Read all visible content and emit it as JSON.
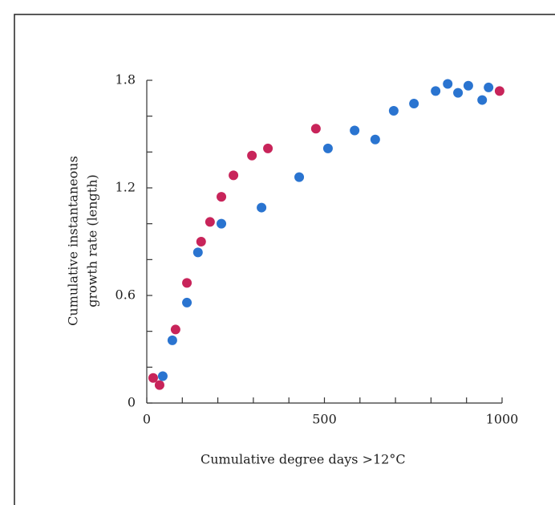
{
  "chart_data": {
    "type": "scatter",
    "ylabel": [
      "Cumulative instantaneous",
      "growth rate (length)"
    ],
    "xlabel": "Cumulative degree days >12°C",
    "xlim": [
      0,
      1000
    ],
    "ylim": [
      0,
      1.8
    ],
    "xticks": [
      0,
      500,
      1000
    ],
    "yticks": [
      0,
      0.6,
      1.2,
      1.8
    ],
    "x_minor_ticks": [
      100,
      200,
      300,
      400,
      600,
      700,
      800,
      900
    ],
    "y_minor_ticks": [
      0.2,
      0.4,
      0.8,
      1.0,
      1.4,
      1.6
    ],
    "series": [
      {
        "color": "#c8245a",
        "x": [
          18,
          36,
          81,
          113,
          153,
          178,
          210,
          244,
          296,
          341,
          476,
          993
        ],
        "values": [
          0.14,
          0.1,
          0.41,
          0.67,
          0.9,
          1.01,
          1.15,
          1.27,
          1.38,
          1.42,
          1.53,
          1.74
        ]
      },
      {
        "color": "#2a74d0",
        "x": [
          45,
          72,
          113,
          144,
          210,
          323,
          429,
          510,
          585,
          643,
          695,
          752,
          813,
          847,
          876,
          905,
          944,
          962
        ],
        "values": [
          0.15,
          0.35,
          0.56,
          0.84,
          1.0,
          1.09,
          1.26,
          1.42,
          1.52,
          1.47,
          1.63,
          1.67,
          1.74,
          1.78,
          1.73,
          1.77,
          1.69,
          1.76
        ]
      }
    ]
  }
}
